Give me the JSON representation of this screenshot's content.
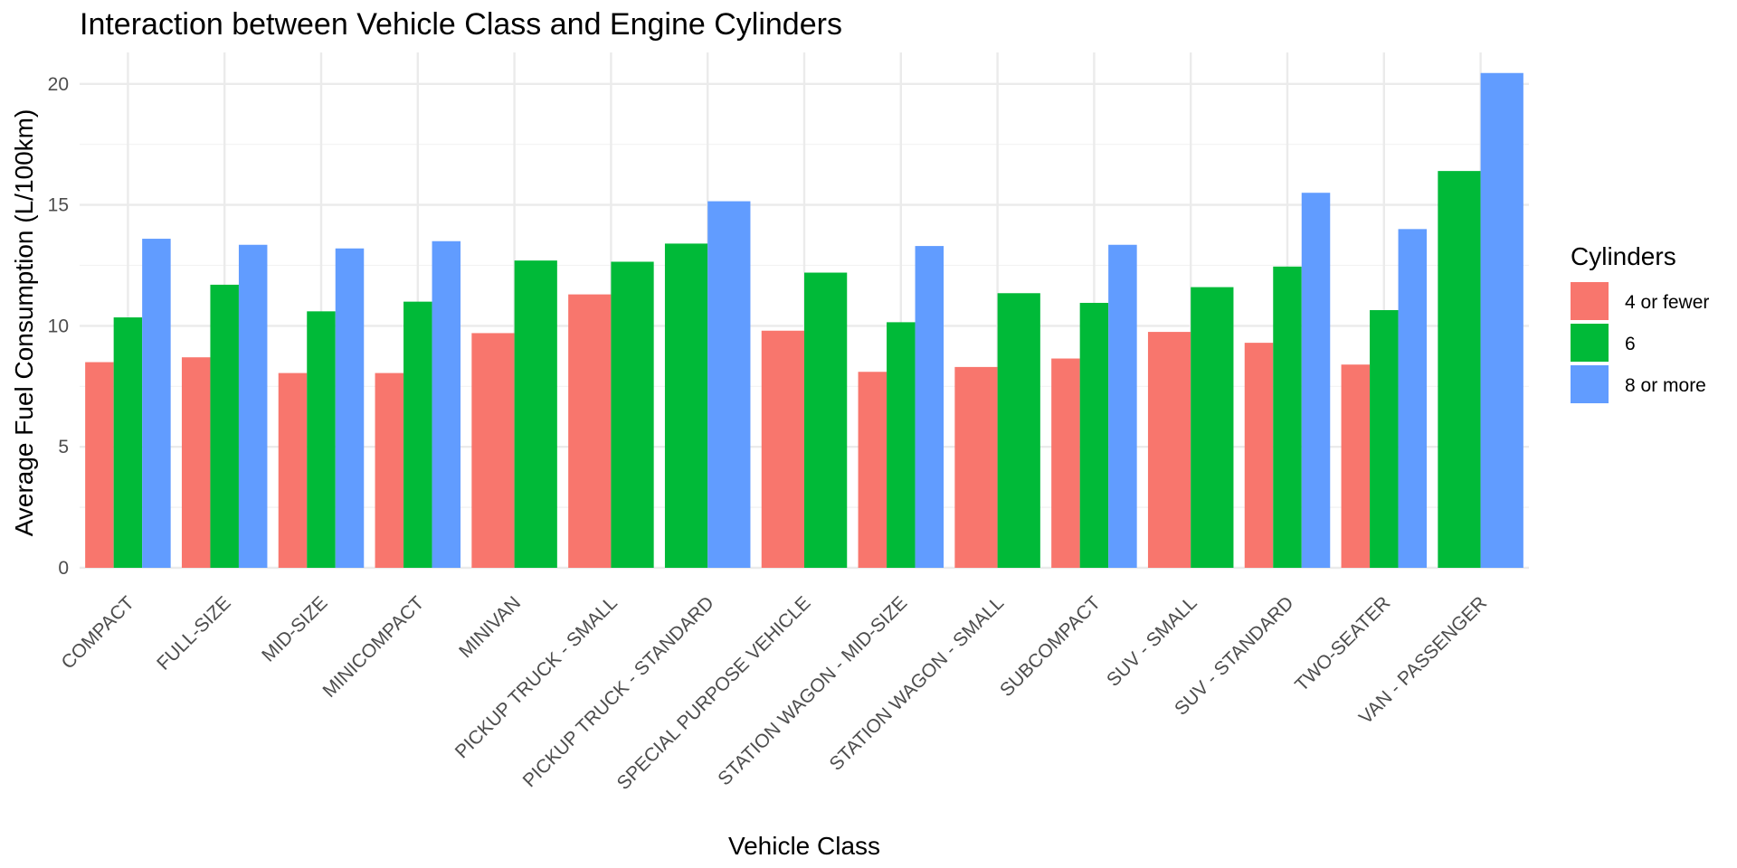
{
  "chart_data": {
    "type": "bar",
    "title": "Interaction between Vehicle Class and Engine Cylinders",
    "xlabel": "Vehicle Class",
    "ylabel": "Average Fuel Consumption (L/100km)",
    "ylim": [
      0,
      21.3
    ],
    "yticks": [
      "0",
      "5",
      "10",
      "15",
      "20"
    ],
    "grid": true,
    "legend": {
      "title": "Cylinders",
      "position": "right"
    },
    "categories": [
      "COMPACT",
      "FULL-SIZE",
      "MID-SIZE",
      "MINICOMPACT",
      "MINIVAN",
      "PICKUP TRUCK - SMALL",
      "PICKUP TRUCK - STANDARD",
      "SPECIAL PURPOSE VEHICLE",
      "STATION WAGON - MID-SIZE",
      "STATION WAGON - SMALL",
      "SUBCOMPACT",
      "SUV - SMALL",
      "SUV - STANDARD",
      "TWO-SEATER",
      "VAN - PASSENGER"
    ],
    "series": [
      {
        "name": "4 or fewer",
        "color": "#F8766D",
        "values": [
          8.5,
          8.7,
          8.05,
          8.05,
          9.7,
          11.3,
          null,
          9.8,
          8.1,
          8.3,
          8.65,
          9.75,
          9.3,
          8.4,
          null
        ]
      },
      {
        "name": "6",
        "color": "#00BA38",
        "values": [
          10.35,
          11.7,
          10.6,
          11.0,
          12.7,
          12.65,
          13.4,
          12.2,
          10.15,
          11.35,
          10.95,
          11.6,
          12.45,
          10.65,
          16.4
        ]
      },
      {
        "name": "8 or more",
        "color": "#619CFF",
        "values": [
          13.6,
          13.35,
          13.2,
          13.5,
          null,
          null,
          15.15,
          null,
          13.3,
          null,
          13.35,
          null,
          15.5,
          14.0,
          20.45
        ]
      }
    ]
  }
}
